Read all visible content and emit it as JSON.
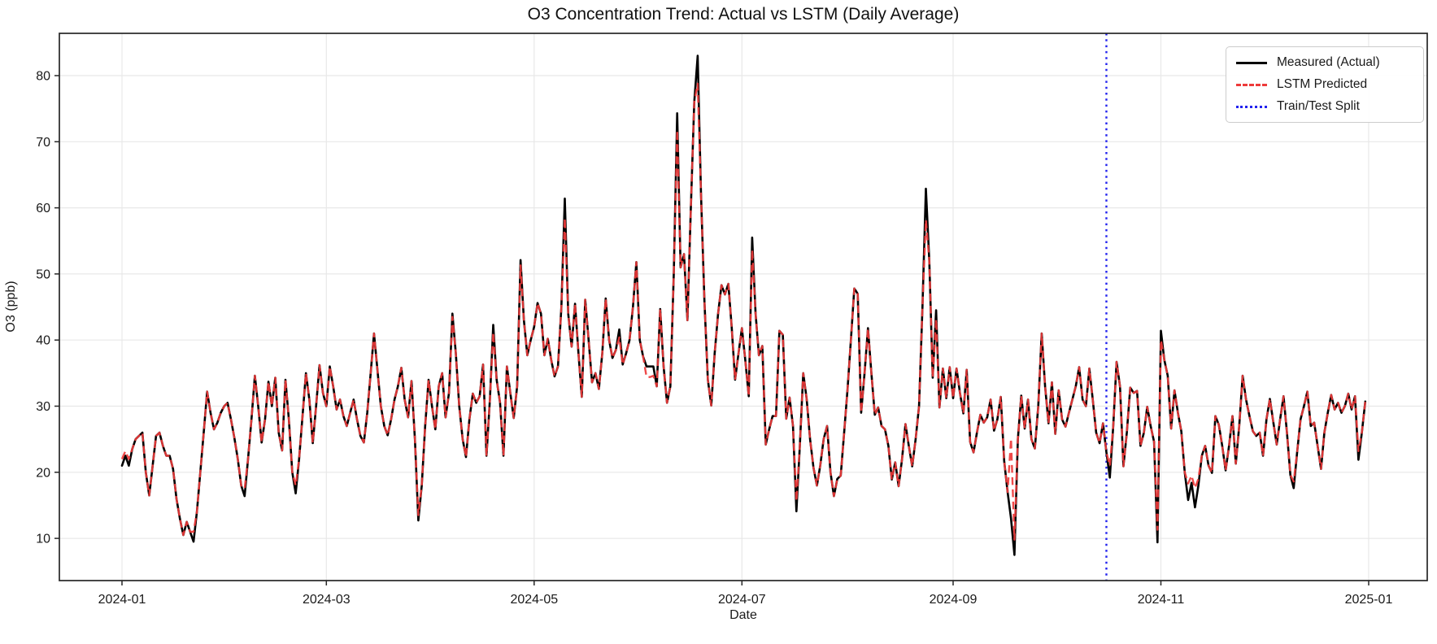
{
  "title": "O3 Concentration Trend: Actual vs LSTM (Daily Average)",
  "xlabel": "Date",
  "ylabel": "O3 (ppb)",
  "legend": {
    "items": [
      {
        "label": "Measured (Actual)",
        "color": "#000000",
        "style": "solid"
      },
      {
        "label": "LSTM Predicted",
        "color": "#ee3a3a",
        "style": "dashed"
      },
      {
        "label": "Train/Test Split",
        "color": "#2222ee",
        "style": "dotted"
      }
    ]
  },
  "colors": {
    "measured": "#000000",
    "predicted": "#ee3a3a",
    "split": "#2222ee",
    "grid": "#e8e8e8",
    "spine": "#262626",
    "tick_text": "#1a1a1a",
    "background": "#ffffff"
  },
  "chart_data": {
    "type": "line",
    "title": "O3 Concentration Trend: Actual vs LSTM (Daily Average)",
    "xlabel": "Date",
    "ylabel": "O3 (ppb)",
    "grid": true,
    "legend_position": "upper right",
    "start_date": "2024-01-01",
    "cadence": "daily",
    "x_tick_labels": [
      "2024-01",
      "2024-03",
      "2024-05",
      "2024-07",
      "2024-09",
      "2024-11",
      "2025-01"
    ],
    "x_tick_days": [
      0,
      60,
      121,
      182,
      244,
      305,
      366
    ],
    "y_ticks": [
      10,
      20,
      30,
      40,
      50,
      60,
      70,
      80
    ],
    "ylim": [
      3.6,
      86.4
    ],
    "xlim_days": [
      -18.4,
      383.2
    ],
    "split_day": 289,
    "split_date": "2024-10-16",
    "series": [
      {
        "name": "Measured (Actual)",
        "color": "#000000",
        "dash": "solid",
        "values": [
          21.0,
          22.5,
          21.0,
          23.5,
          25.0,
          25.5,
          26.0,
          20.0,
          16.5,
          21.0,
          25.5,
          26.0,
          24.0,
          22.5,
          22.5,
          20.5,
          16.0,
          13.0,
          10.5,
          12.5,
          11.0,
          9.5,
          14.0,
          20.0,
          26.0,
          32.2,
          29.0,
          26.5,
          27.5,
          29.0,
          30.0,
          30.5,
          28.0,
          25.2,
          22.0,
          18.0,
          16.4,
          22.0,
          28.0,
          34.6,
          30.0,
          24.5,
          28.0,
          33.7,
          30.0,
          34.3,
          26.0,
          23.3,
          34.0,
          28.0,
          20.0,
          16.8,
          22.0,
          28.5,
          35.0,
          31.0,
          24.4,
          30.0,
          36.2,
          32.0,
          30.0,
          36.0,
          33.0,
          29.5,
          31.0,
          28.5,
          27.0,
          29.0,
          31.0,
          28.0,
          25.5,
          24.5,
          29.0,
          35.0,
          41.0,
          35.5,
          30.0,
          27.0,
          25.6,
          28.0,
          31.0,
          33.0,
          35.8,
          31.0,
          28.3,
          33.8,
          25.0,
          12.7,
          18.0,
          27.0,
          34.0,
          30.0,
          26.5,
          33.0,
          35.0,
          28.3,
          32.0,
          44.0,
          38.0,
          30.0,
          25.0,
          22.3,
          28.0,
          31.9,
          30.5,
          31.5,
          36.3,
          22.5,
          31.0,
          42.3,
          34.0,
          30.5,
          22.5,
          36.0,
          32.0,
          28.2,
          33.0,
          52.1,
          43.0,
          37.7,
          40.0,
          42.0,
          45.6,
          44.0,
          37.7,
          40.2,
          37.0,
          34.5,
          36.0,
          45.0,
          61.4,
          44.0,
          39.0,
          45.5,
          38.0,
          31.4,
          46.1,
          40.0,
          33.6,
          35.0,
          32.6,
          38.0,
          46.3,
          40.0,
          37.3,
          38.5,
          41.6,
          36.3,
          38.0,
          40.0,
          45.0,
          51.8,
          40.0,
          37.5,
          36.0,
          36.0,
          36.0,
          33.0,
          44.7,
          36.0,
          30.5,
          33.0,
          50.0,
          74.3,
          51.0,
          53.0,
          43.0,
          60.0,
          76.0,
          83.0,
          62.0,
          45.9,
          34.0,
          30.1,
          38.0,
          44.0,
          48.3,
          46.9,
          48.5,
          42.0,
          34.0,
          38.0,
          41.8,
          36.9,
          31.5,
          55.5,
          44.0,
          37.7,
          39.1,
          24.2,
          26.5,
          28.5,
          28.5,
          41.4,
          40.8,
          28.1,
          31.3,
          27.0,
          14.1,
          24.0,
          35.0,
          31.1,
          25.0,
          20.7,
          18.0,
          21.0,
          25.0,
          27.0,
          20.0,
          16.4,
          19.0,
          19.5,
          26.0,
          32.6,
          40.0,
          47.8,
          47.0,
          29.0,
          35.0,
          41.8,
          35.0,
          28.7,
          29.8,
          27.0,
          26.5,
          24.0,
          18.9,
          21.5,
          17.9,
          22.0,
          27.3,
          24.0,
          20.9,
          25.0,
          30.0,
          45.0,
          62.9,
          52.0,
          34.3,
          44.5,
          29.8,
          35.7,
          31.2,
          35.9,
          31.2,
          35.7,
          32.0,
          28.9,
          35.5,
          24.6,
          23.0,
          26.0,
          28.7,
          27.5,
          28.3,
          31.0,
          26.3,
          28.0,
          31.4,
          21.7,
          17.0,
          13.0,
          7.5,
          25.0,
          31.6,
          26.6,
          31.0,
          25.0,
          23.6,
          30.0,
          41.0,
          33.0,
          27.4,
          33.6,
          25.8,
          32.4,
          28.0,
          26.9,
          29.0,
          31.0,
          33.0,
          35.9,
          31.0,
          30.0,
          35.7,
          31.0,
          26.0,
          24.4,
          27.4,
          23.0,
          19.2,
          27.0,
          36.7,
          33.0,
          20.9,
          26.0,
          32.8,
          32.0,
          32.3,
          24.0,
          26.0,
          29.9,
          27.0,
          24.6,
          9.4,
          41.4,
          37.0,
          34.6,
          26.6,
          32.4,
          29.0,
          26.2,
          20.0,
          15.8,
          18.4,
          14.7,
          18.0,
          22.5,
          24.0,
          21.0,
          19.9,
          28.5,
          27.2,
          24.0,
          20.3,
          24.0,
          28.5,
          21.3,
          27.0,
          34.6,
          31.0,
          28.5,
          26.2,
          25.5,
          26.0,
          22.5,
          28.0,
          31.1,
          27.6,
          24.2,
          28.0,
          31.5,
          26.0,
          19.6,
          17.6,
          23.0,
          28.0,
          30.0,
          32.2,
          27.0,
          27.5,
          24.0,
          20.5,
          26.0,
          29.0,
          31.7,
          29.5,
          30.5,
          29.0,
          30.0,
          31.9,
          29.5,
          31.5,
          21.9,
          26.0,
          30.7
        ]
      },
      {
        "name": "LSTM Predicted",
        "color": "#ee3a3a",
        "dash": "dashed",
        "values": [
          22.0,
          23.2,
          22.0,
          23.5,
          25.0,
          25.5,
          26.0,
          20.0,
          16.5,
          21.0,
          25.5,
          26.0,
          24.0,
          22.5,
          22.5,
          20.5,
          16.0,
          13.0,
          10.5,
          12.5,
          11.0,
          11.0,
          14.0,
          20.0,
          26.0,
          32.2,
          29.0,
          26.5,
          27.5,
          29.0,
          30.0,
          30.5,
          28.0,
          25.2,
          22.0,
          18.0,
          17.5,
          22.0,
          28.0,
          34.6,
          30.0,
          24.5,
          28.0,
          33.7,
          30.0,
          34.3,
          26.0,
          23.3,
          34.0,
          28.0,
          20.0,
          18.0,
          22.0,
          28.5,
          35.0,
          31.0,
          24.4,
          30.0,
          36.2,
          32.0,
          30.0,
          36.0,
          33.0,
          29.5,
          31.0,
          28.5,
          27.0,
          29.0,
          31.0,
          28.0,
          25.5,
          24.5,
          29.0,
          35.0,
          41.0,
          35.5,
          30.0,
          27.0,
          25.6,
          28.0,
          31.0,
          33.0,
          35.8,
          31.0,
          28.3,
          33.8,
          25.0,
          13.5,
          18.0,
          27.0,
          34.0,
          30.0,
          26.5,
          33.0,
          35.0,
          28.3,
          32.0,
          43.5,
          38.0,
          30.0,
          25.0,
          22.3,
          28.0,
          31.9,
          30.5,
          31.5,
          36.3,
          22.5,
          31.0,
          41.2,
          34.0,
          30.5,
          22.5,
          36.0,
          32.0,
          28.2,
          33.0,
          51.3,
          43.0,
          37.7,
          40.0,
          42.0,
          45.6,
          44.0,
          37.7,
          40.2,
          37.0,
          34.5,
          36.0,
          45.0,
          58.5,
          44.0,
          39.0,
          45.5,
          38.0,
          31.4,
          46.1,
          40.0,
          33.6,
          35.0,
          32.6,
          38.0,
          46.3,
          40.0,
          37.3,
          38.5,
          40.4,
          36.3,
          38.0,
          40.0,
          45.0,
          51.8,
          40.0,
          37.5,
          34.4,
          34.4,
          34.6,
          33.0,
          44.7,
          36.0,
          30.5,
          33.0,
          50.0,
          71.8,
          51.0,
          53.0,
          43.0,
          60.0,
          76.0,
          78.8,
          62.0,
          45.9,
          34.0,
          30.1,
          38.0,
          44.0,
          48.3,
          46.9,
          48.5,
          42.0,
          34.0,
          38.0,
          41.8,
          36.9,
          31.5,
          53.7,
          44.0,
          37.7,
          39.1,
          24.2,
          26.5,
          28.5,
          28.5,
          41.4,
          40.8,
          28.1,
          31.3,
          27.0,
          15.6,
          24.0,
          35.0,
          31.1,
          25.0,
          20.7,
          18.0,
          21.0,
          25.0,
          27.0,
          20.0,
          16.4,
          19.0,
          19.5,
          26.0,
          32.6,
          40.0,
          47.8,
          47.0,
          29.0,
          35.0,
          41.8,
          35.0,
          28.7,
          29.8,
          27.0,
          26.5,
          24.0,
          18.9,
          21.5,
          17.9,
          22.0,
          27.3,
          24.0,
          20.9,
          25.0,
          30.0,
          45.0,
          58.2,
          52.0,
          34.3,
          43.2,
          29.8,
          35.7,
          31.2,
          35.9,
          31.2,
          35.7,
          32.0,
          28.9,
          35.5,
          24.6,
          23.0,
          26.0,
          28.7,
          27.5,
          28.3,
          31.0,
          26.3,
          28.0,
          31.4,
          21.7,
          17.0,
          25.1,
          9.8,
          25.0,
          31.6,
          26.6,
          31.0,
          25.0,
          23.6,
          30.0,
          41.0,
          33.0,
          27.4,
          33.6,
          25.8,
          32.4,
          28.0,
          26.9,
          29.0,
          31.0,
          33.0,
          35.9,
          31.0,
          30.0,
          35.7,
          31.0,
          26.0,
          24.4,
          27.4,
          23.0,
          21.0,
          27.0,
          36.7,
          33.0,
          20.9,
          26.0,
          32.8,
          32.0,
          32.3,
          24.0,
          26.0,
          29.9,
          27.0,
          24.6,
          11.3,
          40.0,
          37.0,
          34.6,
          26.6,
          32.4,
          29.0,
          26.2,
          20.0,
          18.3,
          19.5,
          17.6,
          19.0,
          22.5,
          24.0,
          21.0,
          19.9,
          28.5,
          27.2,
          24.0,
          20.3,
          24.0,
          28.5,
          21.3,
          27.0,
          34.6,
          31.0,
          28.5,
          26.2,
          25.5,
          26.0,
          22.5,
          28.0,
          31.1,
          27.6,
          24.2,
          28.0,
          31.5,
          26.0,
          19.6,
          18.6,
          23.0,
          28.0,
          30.0,
          32.2,
          27.0,
          27.5,
          24.0,
          20.5,
          26.0,
          29.0,
          31.7,
          29.5,
          30.5,
          29.0,
          30.0,
          31.9,
          29.5,
          31.5,
          23.2,
          26.0,
          30.7
        ]
      },
      {
        "name": "Train/Test Split",
        "type": "vline",
        "color": "#2222ee",
        "dash": "dotted",
        "at_day": 289
      }
    ]
  }
}
